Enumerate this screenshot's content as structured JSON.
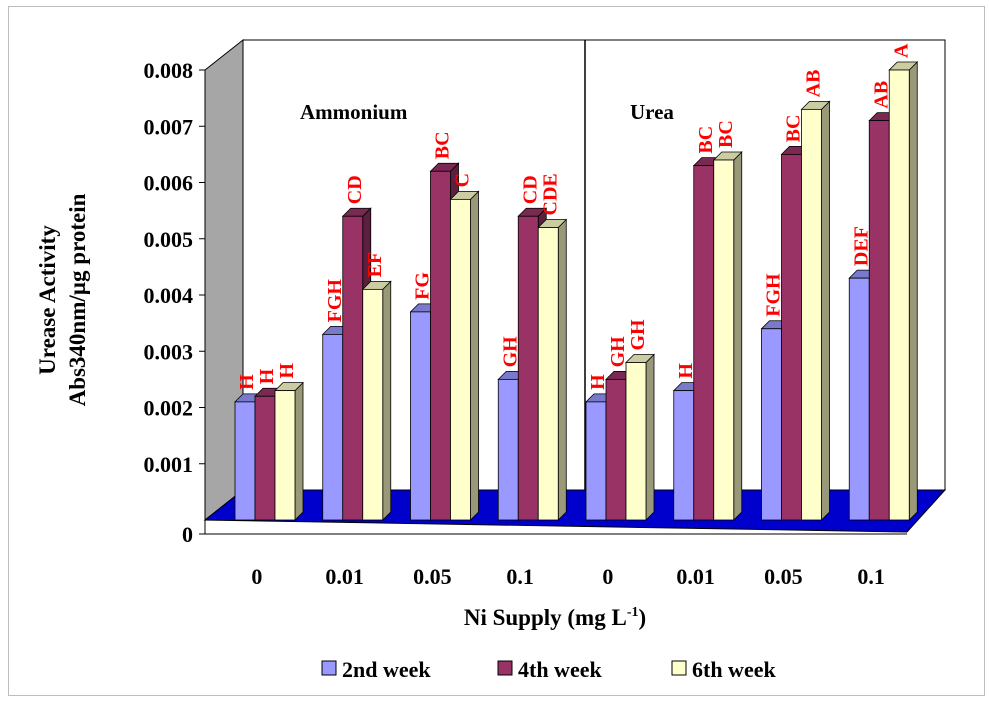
{
  "chart_data": {
    "type": "bar",
    "ylabel_line1": "Urease Activity",
    "ylabel_line2": "Abs340nm/µg protein",
    "xlabel": "Ni Supply (mg L",
    "xlabel_sup": "-1",
    "xlabel_end": ")",
    "ylim": [
      0,
      0.008
    ],
    "yticks": [
      "0",
      "0.001",
      "0.002",
      "0.003",
      "0.004",
      "0.005",
      "0.006",
      "0.007",
      "0.008"
    ],
    "groups": [
      "Ammonium",
      "Urea"
    ],
    "categories": [
      "0",
      "0.01",
      "0.05",
      "0.1",
      "0",
      "0.01",
      "0.05",
      "0.1"
    ],
    "series": [
      {
        "name": "2nd week",
        "color": "#9999ff",
        "values": [
          0.0021,
          0.0033,
          0.0037,
          0.0025,
          0.0021,
          0.0023,
          0.0034,
          0.0043
        ],
        "labels": [
          "H",
          "FGH",
          "FG",
          "GH",
          "H",
          "H",
          "FGH",
          "DEF"
        ]
      },
      {
        "name": "4th week",
        "color": "#993366",
        "values": [
          0.0022,
          0.0054,
          0.0062,
          0.0054,
          0.0025,
          0.0063,
          0.0065,
          0.0071
        ],
        "labels": [
          "H",
          "CD",
          "BC",
          "CD",
          "GH",
          "BC",
          "BC",
          "AB"
        ]
      },
      {
        "name": "6th week",
        "color": "#ffffcc",
        "values": [
          0.0023,
          0.0041,
          0.0057,
          0.0052,
          0.0028,
          0.0064,
          0.0073,
          0.008
        ],
        "labels": [
          "H",
          "EF",
          "C",
          "CDE",
          "GH",
          "BC",
          "AB",
          "A"
        ]
      }
    ],
    "wall_color": "#a6a6a6",
    "floor_color": "#0000cc",
    "legend_position": "bottom",
    "grid": false
  }
}
